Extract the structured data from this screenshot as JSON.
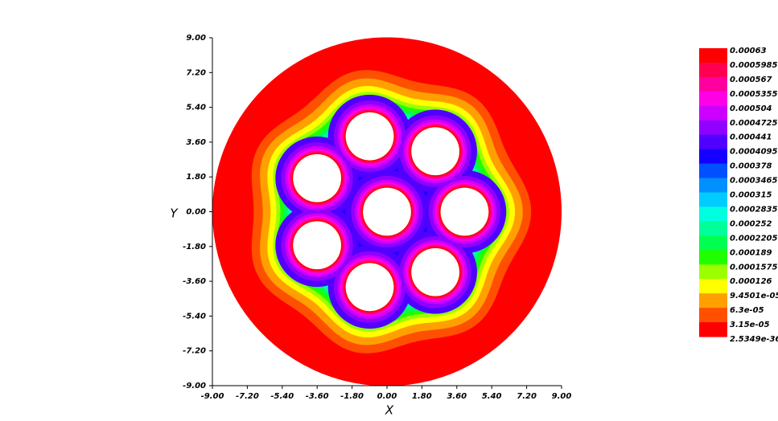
{
  "chart_data": {
    "type": "contour",
    "xlabel": "X",
    "ylabel": "Y",
    "xlim": [
      -9,
      9
    ],
    "ylim": [
      -9,
      9
    ],
    "xticks": [
      {
        "value": -9,
        "label": "-9.00"
      },
      {
        "value": -7.2,
        "label": "-7.20"
      },
      {
        "value": -5.4,
        "label": "-5.40"
      },
      {
        "value": -3.6,
        "label": "-3.60"
      },
      {
        "value": -1.8,
        "label": "-1.80"
      },
      {
        "value": 0,
        "label": "0.00"
      },
      {
        "value": 1.8,
        "label": "1.80"
      },
      {
        "value": 3.6,
        "label": "3.60"
      },
      {
        "value": 5.4,
        "label": "5.40"
      },
      {
        "value": 7.2,
        "label": "7.20"
      },
      {
        "value": 9,
        "label": "9.00"
      }
    ],
    "yticks": [
      {
        "value": 9,
        "label": "9.00"
      },
      {
        "value": 7.2,
        "label": "7.20"
      },
      {
        "value": 5.4,
        "label": "5.40"
      },
      {
        "value": 3.6,
        "label": "3.60"
      },
      {
        "value": 1.8,
        "label": "1.80"
      },
      {
        "value": 0,
        "label": "0.00"
      },
      {
        "value": -1.8,
        "label": "-1.80"
      },
      {
        "value": -3.6,
        "label": "-3.60"
      },
      {
        "value": -5.4,
        "label": "-5.40"
      },
      {
        "value": -7.2,
        "label": "-7.20"
      },
      {
        "value": -9,
        "label": "-9.00"
      }
    ],
    "colorbar": {
      "levels": [
        0.00063,
        0.0005985,
        0.000567,
        0.0005355,
        0.000504,
        0.0004725,
        0.000441,
        0.0004095,
        0.000378,
        0.0003465,
        0.000315,
        0.0002835,
        0.000252,
        0.0002205,
        0.000189,
        0.0001575,
        0.000126,
        {
          "value": 9.4501e-05,
          "label": "9.4501e-05"
        },
        {
          "value": 6.3e-05,
          "label": "6.3e-05"
        },
        {
          "value": 3.15e-05,
          "label": "3.15e-05"
        },
        2.5349e-36
      ],
      "colors": [
        "#ff0000",
        "#ff0050",
        "#ff00a0",
        "#ff00e6",
        "#cc00ff",
        "#9000ff",
        "#5000ff",
        "#1400ff",
        "#0050ff",
        "#0090ff",
        "#00ccff",
        "#00ffe0",
        "#00ff9a",
        "#00ff50",
        "#20ff00",
        "#9cff00",
        "#ffff00",
        "#ffa000",
        "#ff5000",
        "#ff0000"
      ]
    }
  }
}
